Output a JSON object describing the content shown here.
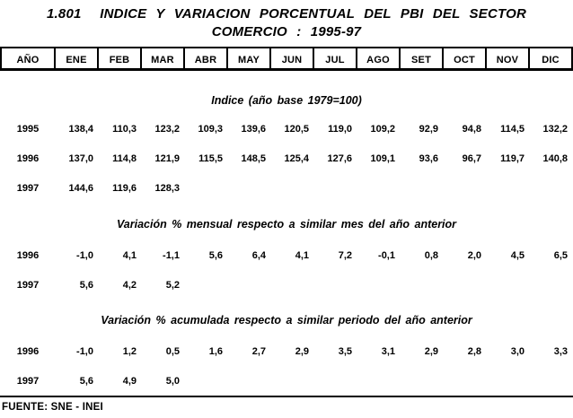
{
  "title": {
    "line1": "1.801  INDICE Y VARIACION PORCENTUAL DEL PBI DEL SECTOR",
    "line2": "COMERCIO : 1995-97"
  },
  "columns": [
    "AÑO",
    "ENE",
    "FEB",
    "MAR",
    "ABR",
    "MAY",
    "JUN",
    "JUL",
    "AGO",
    "SET",
    "OCT",
    "NOV",
    "DIC"
  ],
  "sections": [
    {
      "heading": "Indice (año base 1979=100)",
      "rows": [
        {
          "year": "1995",
          "values": [
            "138,4",
            "110,3",
            "123,2",
            "109,3",
            "139,6",
            "120,5",
            "119,0",
            "109,2",
            "92,9",
            "94,8",
            "114,5",
            "132,2"
          ]
        },
        {
          "year": "1996",
          "values": [
            "137,0",
            "114,8",
            "121,9",
            "115,5",
            "148,5",
            "125,4",
            "127,6",
            "109,1",
            "93,6",
            "96,7",
            "119,7",
            "140,8"
          ]
        },
        {
          "year": "1997",
          "values": [
            "144,6",
            "119,6",
            "128,3",
            "",
            "",
            "",
            "",
            "",
            "",
            "",
            "",
            ""
          ]
        }
      ]
    },
    {
      "heading": "Variación % mensual respecto a similar mes del año anterior",
      "rows": [
        {
          "year": "1996",
          "values": [
            "-1,0",
            "4,1",
            "-1,1",
            "5,6",
            "6,4",
            "4,1",
            "7,2",
            "-0,1",
            "0,8",
            "2,0",
            "4,5",
            "6,5"
          ]
        },
        {
          "year": "1997",
          "values": [
            "5,6",
            "4,2",
            "5,2",
            "",
            "",
            "",
            "",
            "",
            "",
            "",
            "",
            ""
          ]
        }
      ]
    },
    {
      "heading": "Variación % acumulada respecto a similar periodo del año anterior",
      "rows": [
        {
          "year": "1996",
          "values": [
            "-1,0",
            "1,2",
            "0,5",
            "1,6",
            "2,7",
            "2,9",
            "3,5",
            "3,1",
            "2,9",
            "2,8",
            "3,0",
            "3,3"
          ]
        },
        {
          "year": "1997",
          "values": [
            "5,6",
            "4,9",
            "5,0",
            "",
            "",
            "",
            "",
            "",
            "",
            "",
            "",
            ""
          ]
        }
      ]
    }
  ],
  "footer": {
    "source": "FUENTE: SNE - INEI"
  },
  "colors": {
    "ink": "#000000",
    "paper": "#ffffff"
  }
}
